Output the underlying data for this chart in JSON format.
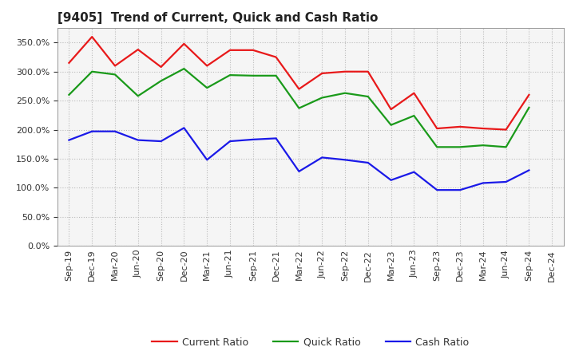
{
  "title": "[9405]  Trend of Current, Quick and Cash Ratio",
  "x_labels": [
    "Sep-19",
    "Dec-19",
    "Mar-20",
    "Jun-20",
    "Sep-20",
    "Dec-20",
    "Mar-21",
    "Jun-21",
    "Sep-21",
    "Dec-21",
    "Mar-22",
    "Jun-22",
    "Sep-22",
    "Dec-22",
    "Mar-23",
    "Jun-23",
    "Sep-23",
    "Dec-23",
    "Mar-24",
    "Jun-24",
    "Sep-24",
    "Dec-24"
  ],
  "current_ratio": [
    315,
    360,
    310,
    338,
    308,
    348,
    310,
    337,
    337,
    325,
    270,
    297,
    300,
    300,
    235,
    263,
    202,
    205,
    202,
    200,
    260,
    null
  ],
  "quick_ratio": [
    260,
    300,
    295,
    258,
    284,
    305,
    272,
    294,
    293,
    293,
    237,
    255,
    263,
    257,
    208,
    224,
    170,
    170,
    173,
    170,
    238,
    null
  ],
  "cash_ratio": [
    182,
    197,
    197,
    182,
    180,
    203,
    148,
    180,
    183,
    185,
    128,
    152,
    148,
    143,
    113,
    127,
    96,
    96,
    108,
    110,
    130,
    null
  ],
  "ylim": [
    0,
    375
  ],
  "yticks": [
    0,
    50,
    100,
    150,
    200,
    250,
    300,
    350
  ],
  "current_color": "#e8191a",
  "quick_color": "#1a9a1a",
  "cash_color": "#1a19e8",
  "bg_color": "#ffffff",
  "plot_bg_color": "#f5f5f5",
  "grid_color": "#bbbbbb",
  "legend_labels": [
    "Current Ratio",
    "Quick Ratio",
    "Cash Ratio"
  ],
  "title_fontsize": 11,
  "tick_fontsize": 8,
  "legend_fontsize": 9
}
